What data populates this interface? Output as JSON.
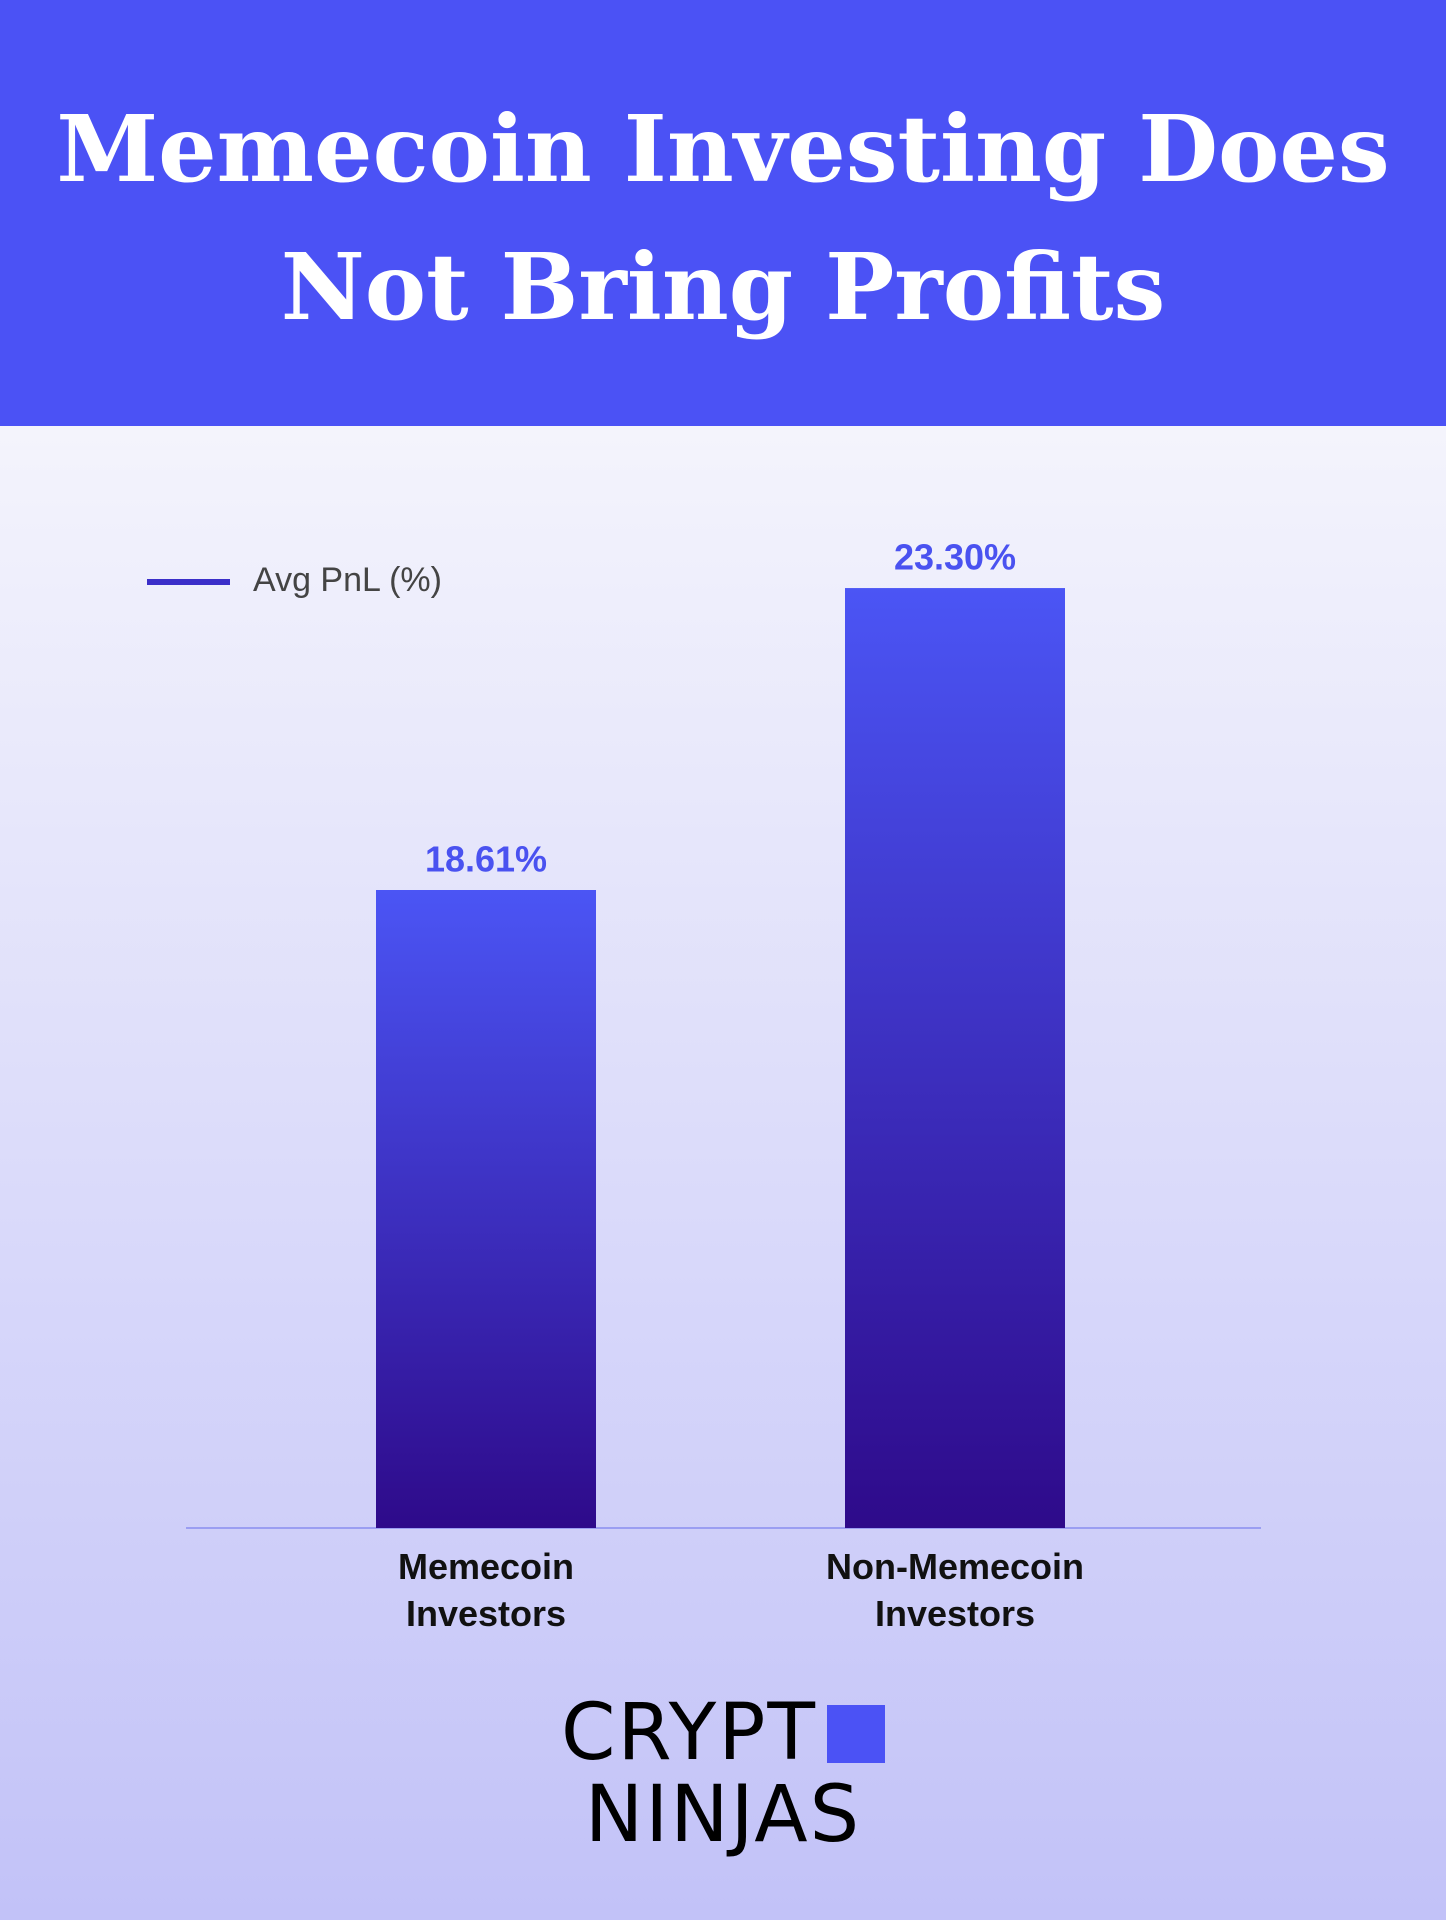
{
  "title": "Memecoin Investing Does Not Bring Profits",
  "chart_data": {
    "type": "bar",
    "categories": [
      "Memecoin Investors",
      "Non-Memecoin Investors"
    ],
    "series": [
      {
        "name": "Avg PnL (%)",
        "color": "#3b2fc9",
        "values": [
          18.61,
          23.3
        ],
        "value_labels": [
          "18.61%",
          "23.30%"
        ]
      }
    ],
    "ylim": [
      8.7,
      24.0
    ]
  },
  "logo": {
    "top": "CRYPT",
    "bottom": "NINJAS"
  }
}
